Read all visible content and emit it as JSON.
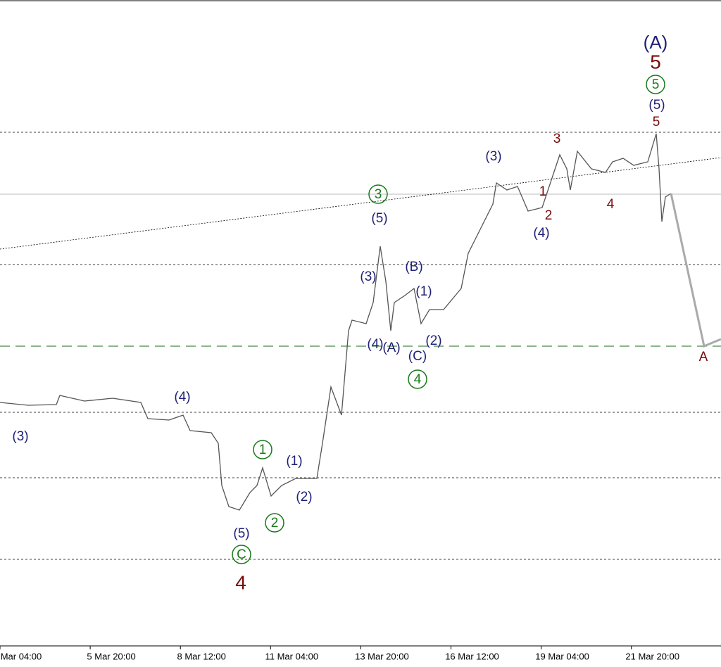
{
  "chart_data": {
    "type": "wave_chart",
    "categories": [
      "Mar 04:00",
      "5 Mar 20:00",
      "8 Mar 12:00",
      "11 Mar 04:00",
      "13 Mar 20:00",
      "16 Mar 12:00",
      "19 Mar 04:00",
      "21 Mar 20:00"
    ],
    "annotations": [
      "(A)",
      "5",
      "5",
      "(5)",
      "5",
      "3",
      "(3)",
      "1",
      "2",
      "(4)",
      "4",
      "3",
      "(5)",
      "(B)",
      "(3)",
      "(1)",
      "(4)",
      "(A)",
      "(C)",
      "(2)",
      "4",
      "(4)",
      "(3)",
      "1",
      "(1)",
      "(2)",
      "2",
      "(5)",
      "C",
      "4",
      "A"
    ]
  }
}
